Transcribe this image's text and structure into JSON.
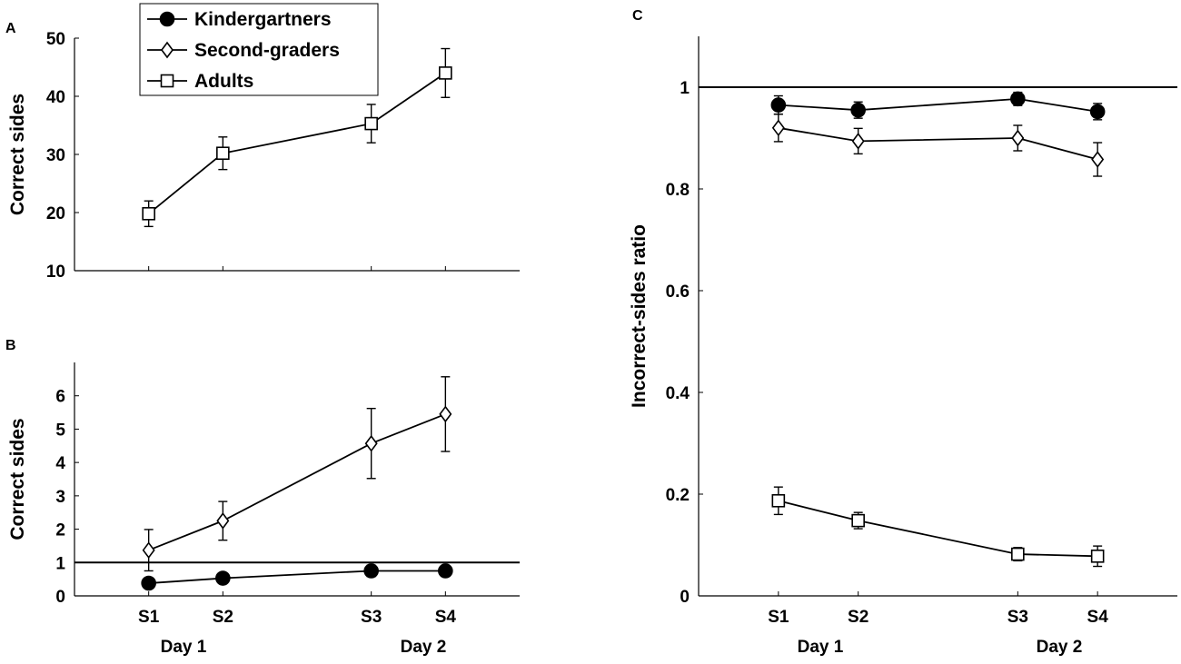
{
  "colors": {
    "line": "#000000",
    "background": "#ffffff",
    "open_fill": "#ffffff"
  },
  "legend": {
    "location": "top-left of figure",
    "entries": [
      {
        "label": "Kindergartners",
        "marker": "filled-circle"
      },
      {
        "label": "Second-graders",
        "marker": "open-diamond"
      },
      {
        "label": "Adults",
        "marker": "open-square"
      }
    ]
  },
  "chart_data": [
    {
      "panel": "A",
      "type": "line",
      "xlabel": "",
      "ylabel": "Correct sides",
      "x": [
        1,
        2,
        4,
        5
      ],
      "x_tick_labels": [
        "S1",
        "S2",
        "S3",
        "S4"
      ],
      "xlim": [
        0,
        6
      ],
      "ylim": [
        10,
        50
      ],
      "yticks": [
        10,
        20,
        30,
        40,
        50
      ],
      "ytick_labels": [
        "10",
        "20",
        "30",
        "40",
        "50"
      ],
      "day_labels": [],
      "reference_line": null,
      "series": [
        {
          "name": "Adults",
          "marker": "square",
          "values": [
            19.8,
            30.2,
            35.3,
            44.0
          ],
          "errors": [
            2.2,
            2.8,
            3.3,
            4.2
          ]
        }
      ]
    },
    {
      "panel": "B",
      "type": "line",
      "xlabel": "",
      "ylabel": "Correct sides",
      "x": [
        1,
        2,
        4,
        5
      ],
      "x_tick_labels": [
        "S1",
        "S2",
        "S3",
        "S4"
      ],
      "xlim": [
        0,
        6
      ],
      "ylim": [
        0,
        7
      ],
      "yticks": [
        0,
        1,
        2,
        3,
        4,
        5,
        6
      ],
      "ytick_labels": [
        "0",
        "1",
        "2",
        "3",
        "4",
        "5",
        "6"
      ],
      "day_labels": [
        "Day 1",
        "Day 2"
      ],
      "reference_line": 1,
      "series": [
        {
          "name": "Second-graders",
          "marker": "diamond",
          "values": [
            1.37,
            2.25,
            4.57,
            5.45
          ],
          "errors": [
            0.62,
            0.58,
            1.05,
            1.12
          ]
        },
        {
          "name": "Kindergartners",
          "marker": "circle",
          "values": [
            0.38,
            0.53,
            0.75,
            0.75
          ],
          "errors": [
            0.06,
            0.07,
            0.17,
            0.15
          ]
        }
      ]
    },
    {
      "panel": "C",
      "type": "line",
      "xlabel": "",
      "ylabel": "Incorrect-sides ratio",
      "x": [
        1,
        2,
        4,
        5
      ],
      "x_tick_labels": [
        "S1",
        "S2",
        "S3",
        "S4"
      ],
      "xlim": [
        0,
        6
      ],
      "ylim": [
        0,
        1.1
      ],
      "yticks": [
        0,
        0.2,
        0.4,
        0.6,
        0.8,
        1
      ],
      "ytick_labels": [
        "0",
        "0.2",
        "0.4",
        "0.6",
        "0.8",
        "1"
      ],
      "day_labels": [
        "Day 1",
        "Day 2"
      ],
      "reference_line": 1,
      "series": [
        {
          "name": "Kindergartners",
          "marker": "circle",
          "values": [
            0.965,
            0.955,
            0.977,
            0.952
          ],
          "errors": [
            0.018,
            0.016,
            0.013,
            0.016
          ]
        },
        {
          "name": "Second-graders",
          "marker": "diamond",
          "values": [
            0.92,
            0.894,
            0.9,
            0.858
          ],
          "errors": [
            0.027,
            0.025,
            0.025,
            0.033
          ]
        },
        {
          "name": "Adults",
          "marker": "square",
          "values": [
            0.187,
            0.148,
            0.082,
            0.078
          ],
          "errors": [
            0.027,
            0.016,
            0.013,
            0.02
          ]
        }
      ]
    }
  ]
}
